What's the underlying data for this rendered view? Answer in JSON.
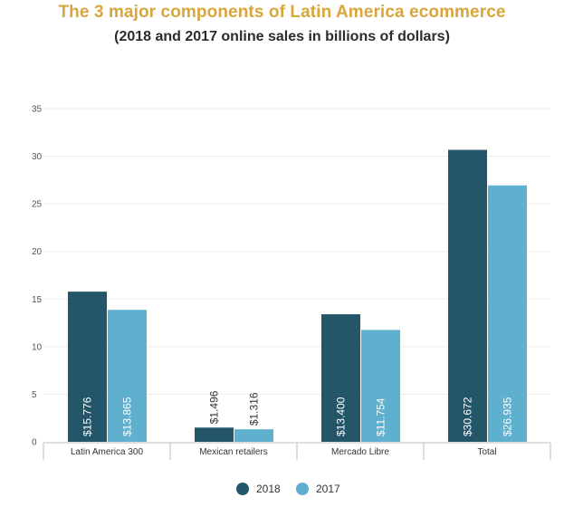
{
  "chart_data": {
    "type": "bar",
    "title": "The 3 major components of Latin America ecommerce",
    "subtitle": "(2018 and 2017 online sales in billions of dollars)",
    "categories": [
      "Latin America 300",
      "Mexican retailers",
      "Mercado Libre",
      "Total"
    ],
    "series": [
      {
        "name": "2018",
        "color": "#24566a",
        "values": [
          15.776,
          1.496,
          13.4,
          30.672
        ],
        "labels": [
          "$15.776",
          "$1.496",
          "$13.400",
          "$30.672"
        ]
      },
      {
        "name": "2017",
        "color": "#5fb0cf",
        "values": [
          13.865,
          1.316,
          11.754,
          26.935
        ],
        "labels": [
          "$13.865",
          "$1.316",
          "$11.754",
          "$26.935"
        ]
      }
    ],
    "ylim": [
      0,
      35
    ],
    "yticks": [
      0,
      5,
      10,
      15,
      20,
      25,
      30,
      35
    ],
    "grid": true,
    "legend_position": "bottom",
    "title_color": "#d9a63b"
  }
}
